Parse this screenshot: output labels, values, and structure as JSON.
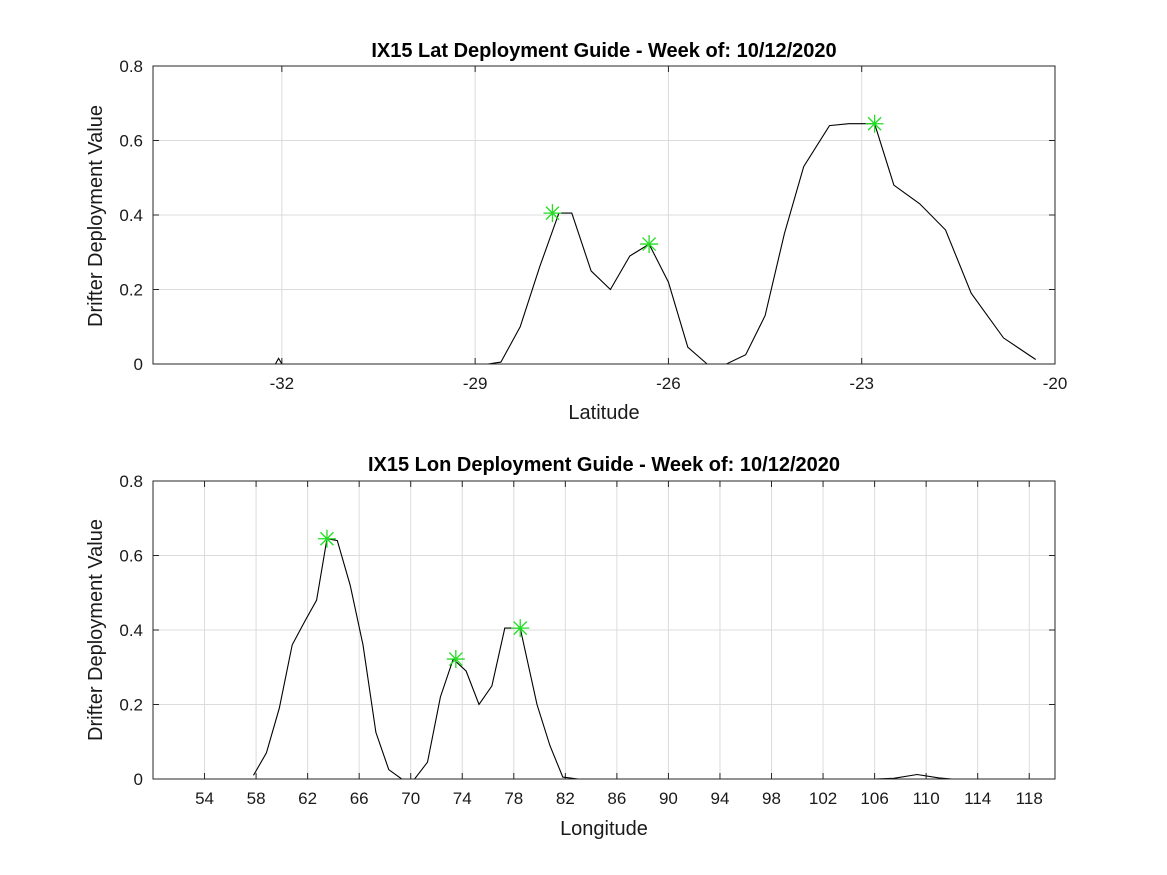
{
  "chart_data": [
    {
      "type": "line",
      "title": "IX15 Lat Deployment Guide - Week of: 10/12/2020",
      "xlabel": "Latitude",
      "ylabel": "Drifter Deployment Value",
      "xlim": [
        -34.0,
        -20.0
      ],
      "ylim": [
        0,
        0.8
      ],
      "xticks": [
        -32,
        -29,
        -26,
        -23,
        -20
      ],
      "yticks": [
        0,
        0.2,
        0.4,
        0.6,
        0.8
      ],
      "grid": true,
      "series": [
        {
          "x": [
            -32.1,
            -32.05,
            -32.0,
            -29.0,
            -28.8,
            -28.6,
            -28.3,
            -28.0,
            -27.7,
            -27.5,
            -27.2,
            -26.9,
            -26.6,
            -26.3,
            -26.0,
            -25.7,
            -25.4,
            -25.1,
            -24.8,
            -24.5,
            -24.2,
            -23.9,
            -23.5,
            -23.2,
            -22.8,
            -22.5,
            -22.1,
            -21.7,
            -21.3,
            -20.8,
            -20.3
          ],
          "y": [
            0.0,
            0.015,
            0.0,
            0.0,
            0.0,
            0.005,
            0.1,
            0.26,
            0.405,
            0.405,
            0.25,
            0.2,
            0.29,
            0.322,
            0.22,
            0.045,
            0.0,
            0.0,
            0.025,
            0.13,
            0.35,
            0.53,
            0.64,
            0.645,
            0.645,
            0.48,
            0.43,
            0.36,
            0.19,
            0.07,
            0.012
          ]
        }
      ],
      "peaks": {
        "x": [
          -27.8,
          -26.3,
          -22.8
        ],
        "y": [
          0.405,
          0.322,
          0.645
        ],
        "color": "#22dd22"
      }
    },
    {
      "type": "line",
      "title": "IX15 Lon Deployment Guide - Week of: 10/12/2020",
      "xlabel": "Longitude",
      "ylabel": "Drifter Deployment Value",
      "xlim": [
        50,
        120
      ],
      "ylim": [
        0,
        0.8
      ],
      "xticks": [
        54,
        58,
        62,
        66,
        70,
        74,
        78,
        82,
        86,
        90,
        94,
        98,
        102,
        106,
        110,
        114,
        118
      ],
      "yticks": [
        0,
        0.2,
        0.4,
        0.6,
        0.8
      ],
      "grid": true,
      "series": [
        {
          "x": [
            57.8,
            58.8,
            59.8,
            60.8,
            61.8,
            62.7,
            63.5,
            64.3,
            65.3,
            66.3,
            67.3,
            68.3,
            69.3,
            70.3,
            71.3,
            72.3,
            73.3,
            74.3,
            75.3,
            76.3,
            77.3,
            78.5,
            79.8,
            80.8,
            81.8,
            83.0,
            90.0,
            100.0,
            106.0,
            107.5,
            109.3,
            111.0,
            112.0,
            114.8
          ],
          "y": [
            0.01,
            0.07,
            0.19,
            0.36,
            0.425,
            0.48,
            0.645,
            0.64,
            0.52,
            0.36,
            0.125,
            0.025,
            0.0,
            0.0,
            0.045,
            0.22,
            0.322,
            0.29,
            0.2,
            0.25,
            0.405,
            0.405,
            0.2,
            0.09,
            0.005,
            0.0,
            0.0,
            0.0,
            0.0,
            0.002,
            0.012,
            0.003,
            0.0,
            0.0
          ]
        }
      ],
      "peaks": {
        "x": [
          63.5,
          73.5,
          78.5
        ],
        "y": [
          0.645,
          0.322,
          0.405
        ],
        "color": "#22dd22"
      }
    }
  ]
}
